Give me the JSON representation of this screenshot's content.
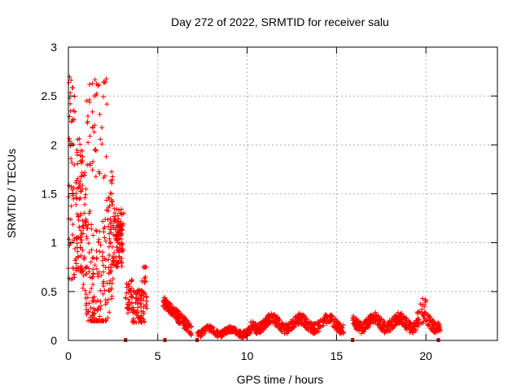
{
  "chart_data": {
    "type": "scatter",
    "title": "Day 272 of 2022, SRMTID for receiver salu",
    "xlabel": "GPS time / hours",
    "ylabel": "SRMTID / TECUs",
    "xlim": [
      0,
      24
    ],
    "ylim": [
      0,
      3
    ],
    "xticks": [
      0,
      5,
      10,
      15,
      20
    ],
    "yticks": [
      0,
      0.5,
      1,
      1.5,
      2,
      2.5,
      3
    ],
    "ytick_labels": [
      "0",
      "0.5",
      "1",
      "1.5",
      "2",
      "2.5",
      "3"
    ],
    "grid": true,
    "marker": "+",
    "series_color": "#ff0000",
    "gap_marker_color": "#cc0000",
    "gap_markers_x": [
      3.2,
      5.4,
      7.2,
      15.9,
      20.7
    ],
    "segments": [
      {
        "x_start": 0.0,
        "x_end": 3.1,
        "y_min": 0.2,
        "y_max": 2.75,
        "density": 12
      },
      {
        "x_start": 3.2,
        "x_end": 4.4,
        "y_min": 0.15,
        "y_max": 0.75,
        "density": 8
      },
      {
        "x_start": 5.3,
        "x_end": 6.9,
        "y_min": 0.05,
        "y_max": 0.45,
        "density": 8
      },
      {
        "x_start": 7.2,
        "x_end": 10.2,
        "y_min": 0.03,
        "y_max": 0.18,
        "density": 6
      },
      {
        "x_start": 10.2,
        "x_end": 15.4,
        "y_min": 0.05,
        "y_max": 0.35,
        "density": 6
      },
      {
        "x_start": 15.9,
        "x_end": 20.8,
        "y_min": 0.05,
        "y_max": 0.45,
        "density": 6
      }
    ]
  }
}
